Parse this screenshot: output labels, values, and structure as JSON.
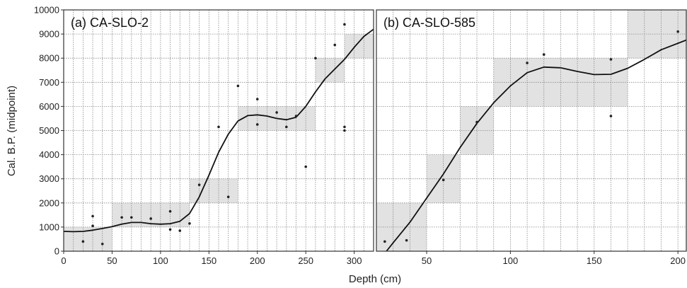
{
  "chart_data": {
    "type": "scatter",
    "ylabel": "Cal. B.P. (midpoint)",
    "xlabel": "Depth (cm)",
    "yticks": [
      "0",
      "1000",
      "2000",
      "3000",
      "4000",
      "5000",
      "6000",
      "7000",
      "8000",
      "9000",
      "10000"
    ],
    "ylim": [
      0,
      10000
    ],
    "grid": true,
    "colors": {
      "band": "#e2e2e2",
      "curve": "#111111",
      "grid": "#888888",
      "point": "#222222"
    },
    "panels": [
      {
        "title": "(a) CA-SLO-2",
        "xlim": [
          0,
          320
        ],
        "xticks": [
          "0",
          "50",
          "100",
          "150",
          "200",
          "250",
          "300"
        ],
        "xtick_values": [
          0,
          50,
          100,
          150,
          200,
          250,
          300
        ],
        "points": [
          [
            20,
            400
          ],
          [
            30,
            1450
          ],
          [
            30,
            1050
          ],
          [
            40,
            300
          ],
          [
            60,
            1400
          ],
          [
            70,
            1400
          ],
          [
            90,
            1350
          ],
          [
            110,
            1650
          ],
          [
            110,
            900
          ],
          [
            120,
            850
          ],
          [
            130,
            1150
          ],
          [
            140,
            2750
          ],
          [
            160,
            5150
          ],
          [
            170,
            2250
          ],
          [
            180,
            6850
          ],
          [
            200,
            6300
          ],
          [
            200,
            5250
          ],
          [
            220,
            5750
          ],
          [
            230,
            5150
          ],
          [
            240,
            5600
          ],
          [
            250,
            3500
          ],
          [
            260,
            8000
          ],
          [
            280,
            8550
          ],
          [
            290,
            9400
          ],
          [
            290,
            5150
          ],
          [
            290,
            5000
          ]
        ],
        "bands": [
          {
            "x": [
              0,
              50
            ],
            "y": [
              0,
              1000
            ]
          },
          {
            "x": [
              50,
              130
            ],
            "y": [
              1000,
              2000
            ]
          },
          {
            "x": [
              130,
              180
            ],
            "y": [
              2000,
              3000
            ]
          },
          {
            "x": [
              180,
              260
            ],
            "y": [
              5000,
              6000
            ]
          },
          {
            "x": [
              260,
              290
            ],
            "y": [
              7000,
              8000
            ]
          },
          {
            "x": [
              290,
              320
            ],
            "y": [
              8000,
              9000
            ]
          }
        ],
        "curve": [
          [
            0,
            820
          ],
          [
            10,
            810
          ],
          [
            20,
            820
          ],
          [
            30,
            870
          ],
          [
            40,
            940
          ],
          [
            50,
            1020
          ],
          [
            60,
            1120
          ],
          [
            70,
            1190
          ],
          [
            80,
            1190
          ],
          [
            90,
            1140
          ],
          [
            100,
            1120
          ],
          [
            110,
            1140
          ],
          [
            120,
            1240
          ],
          [
            130,
            1560
          ],
          [
            140,
            2250
          ],
          [
            150,
            3150
          ],
          [
            160,
            4100
          ],
          [
            170,
            4850
          ],
          [
            180,
            5400
          ],
          [
            190,
            5620
          ],
          [
            200,
            5650
          ],
          [
            210,
            5600
          ],
          [
            220,
            5500
          ],
          [
            230,
            5450
          ],
          [
            240,
            5550
          ],
          [
            250,
            6000
          ],
          [
            260,
            6600
          ],
          [
            270,
            7150
          ],
          [
            280,
            7550
          ],
          [
            290,
            7950
          ],
          [
            300,
            8450
          ],
          [
            310,
            8900
          ],
          [
            320,
            9200
          ]
        ]
      },
      {
        "title": "(b) CA-SLO-585",
        "xlim": [
          20,
          205
        ],
        "xticks": [
          "50",
          "100",
          "150",
          "200"
        ],
        "xtick_values": [
          50,
          100,
          150,
          200
        ],
        "points": [
          [
            25,
            400
          ],
          [
            38,
            450
          ],
          [
            60,
            2950
          ],
          [
            80,
            5350
          ],
          [
            110,
            7800
          ],
          [
            120,
            8150
          ],
          [
            160,
            7950
          ],
          [
            160,
            5600
          ],
          [
            200,
            9100
          ]
        ],
        "bands": [
          {
            "x": [
              20,
              50
            ],
            "y": [
              0,
              2000
            ]
          },
          {
            "x": [
              50,
              70
            ],
            "y": [
              2000,
              4000
            ]
          },
          {
            "x": [
              70,
              90
            ],
            "y": [
              4000,
              6000
            ]
          },
          {
            "x": [
              90,
              170
            ],
            "y": [
              6000,
              8000
            ]
          },
          {
            "x": [
              170,
              205
            ],
            "y": [
              8000,
              10000
            ]
          }
        ],
        "curve": [
          [
            26,
            0
          ],
          [
            30,
            350
          ],
          [
            40,
            1200
          ],
          [
            50,
            2200
          ],
          [
            60,
            3200
          ],
          [
            70,
            4300
          ],
          [
            80,
            5300
          ],
          [
            90,
            6150
          ],
          [
            100,
            6850
          ],
          [
            110,
            7400
          ],
          [
            120,
            7630
          ],
          [
            130,
            7600
          ],
          [
            140,
            7450
          ],
          [
            150,
            7320
          ],
          [
            160,
            7330
          ],
          [
            170,
            7580
          ],
          [
            180,
            7950
          ],
          [
            190,
            8350
          ],
          [
            205,
            8750
          ]
        ]
      }
    ]
  }
}
